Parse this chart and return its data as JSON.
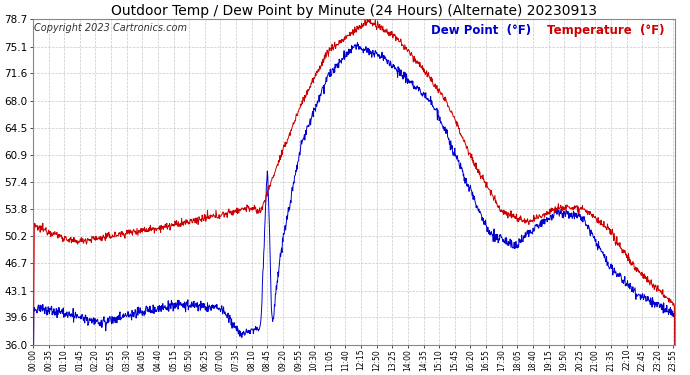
{
  "title": "Outdoor Temp / Dew Point by Minute (24 Hours) (Alternate) 20230913",
  "copyright": "Copyright 2023 Cartronics.com",
  "legend_dew": "Dew Point  (°F)",
  "legend_temp": "Temperature  (°F)",
  "color_dew": "#0000cc",
  "color_temp": "#cc0000",
  "ylim": [
    36.0,
    78.7
  ],
  "yticks": [
    36.0,
    39.6,
    43.1,
    46.7,
    50.2,
    53.8,
    57.4,
    60.9,
    64.5,
    68.0,
    71.6,
    75.1,
    78.7
  ],
  "background_color": "#ffffff",
  "grid_color": "#bbbbbb",
  "title_fontsize": 10,
  "copyright_fontsize": 7,
  "legend_fontsize": 8.5,
  "ytick_fontsize": 7.5,
  "xtick_fontsize": 5.5,
  "tick_interval_minutes": 35
}
